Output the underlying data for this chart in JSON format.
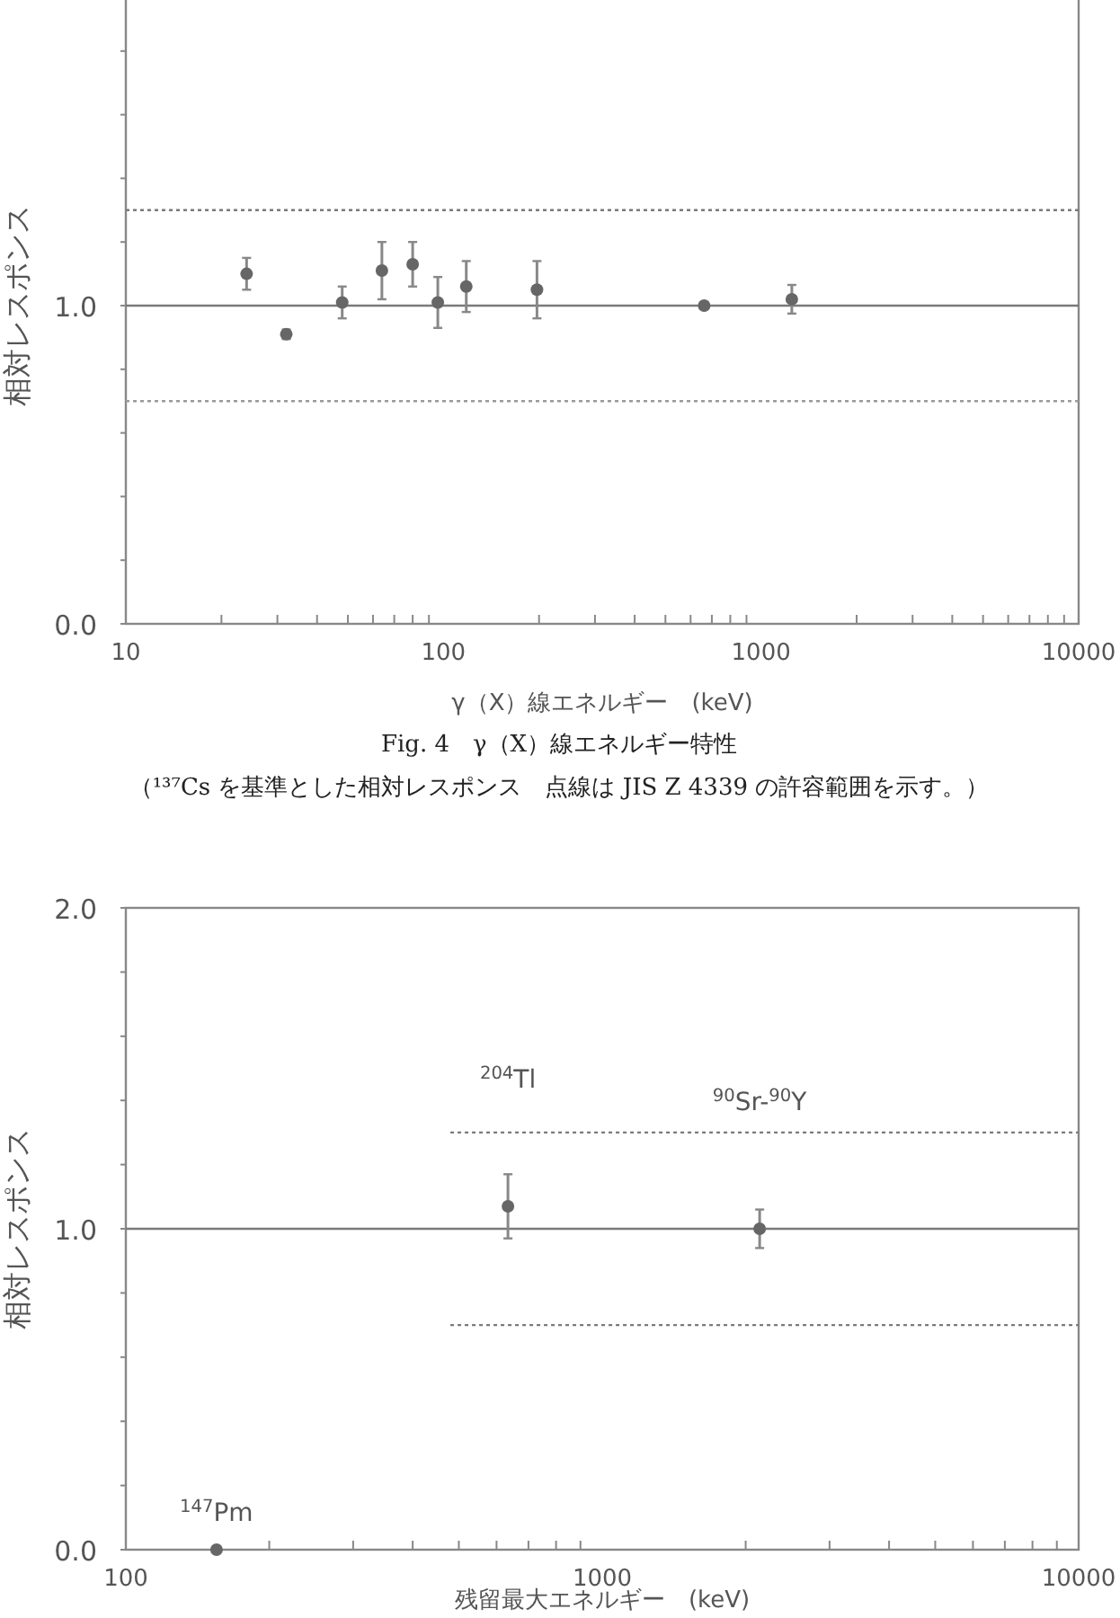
{
  "chart_data": [
    {
      "type": "scatter",
      "xlabel": "γ（X）線エネルギー　(keV)",
      "ylabel": "相対レスポンス",
      "log": "x",
      "grid": false,
      "marker": "circle",
      "annotations": [
        "Fig. 4　γ（X）線エネルギー特性",
        "（¹³⁷Cs を基準とした相対レスポンス　点線は JIS Z 4339 の許容範囲を示す。）"
      ],
      "xlim": [
        10,
        10000
      ],
      "ylim": [
        0,
        2
      ],
      "xticks": [
        10,
        {
          "value": 20,
          "label": null
        },
        {
          "value": 30,
          "label": null
        },
        {
          "value": 40,
          "label": null
        },
        {
          "value": 50,
          "label": null
        },
        {
          "value": 60,
          "label": null
        },
        {
          "value": 70,
          "label": null
        },
        {
          "value": 80,
          "label": null
        },
        {
          "value": 90,
          "label": null
        },
        100,
        {
          "value": 200,
          "label": null
        },
        {
          "value": 300,
          "label": null
        },
        {
          "value": 400,
          "label": null
        },
        {
          "value": 500,
          "label": null
        },
        {
          "value": 600,
          "label": null
        },
        {
          "value": 700,
          "label": null
        },
        {
          "value": 800,
          "label": null
        },
        {
          "value": 900,
          "label": null
        },
        1000,
        {
          "value": 2000,
          "label": null
        },
        {
          "value": 3000,
          "label": null
        },
        {
          "value": 4000,
          "label": null
        },
        {
          "value": 5000,
          "label": null
        },
        {
          "value": 6000,
          "label": null
        },
        {
          "value": 7000,
          "label": null
        },
        {
          "value": 8000,
          "label": null
        },
        {
          "value": 9000,
          "label": null
        },
        10000
      ],
      "yticks": [
        {
          "value": 0,
          "label": "0.0"
        },
        {
          "value": 0.2,
          "label": null
        },
        {
          "value": 0.4,
          "label": null
        },
        {
          "value": 0.6,
          "label": null
        },
        {
          "value": 0.8,
          "label": null
        },
        {
          "value": 1,
          "label": "1.0"
        },
        {
          "value": 1.2,
          "label": null
        },
        {
          "value": 1.4,
          "label": null
        },
        {
          "value": 1.6,
          "label": null
        },
        {
          "value": 1.8,
          "label": null
        }
      ],
      "ref_lines": [
        {
          "axis": "y",
          "value": 1.0,
          "color": "#7a7a7a",
          "line_style": "solid"
        },
        {
          "axis": "y",
          "value": 1.3,
          "color": "#7a7a7a",
          "line_style": "dotted"
        },
        {
          "axis": "y",
          "value": 0.7,
          "color": "#9a9a9a",
          "line_style": "dotted"
        }
      ],
      "series": [
        {
          "type": "scatter",
          "color": "#666666",
          "x": [
            24,
            32,
            48,
            64,
            80,
            96,
            118,
            197,
            662,
            1250
          ],
          "values": [
            1.1,
            0.91,
            1.01,
            1.11,
            1.13,
            1.01,
            1.06,
            1.05,
            1.0,
            1.02
          ],
          "errors": [
            0.05,
            0.015,
            0.05,
            0.09,
            0.07,
            0.08,
            0.08,
            0.09,
            0.01,
            0.045
          ]
        }
      ]
    },
    {
      "type": "scatter",
      "xlabel": "残留最大エネルギー　(keV)",
      "ylabel": "相対レスポンス",
      "log": "x",
      "grid": false,
      "annotations": [
        "$^{147}$Pm",
        "$^{204}$Tl",
        "$^{90}$Sr-$^{90}$Y"
      ],
      "xlim": [
        100,
        10000
      ],
      "ylim": [
        0,
        2
      ],
      "xticks": [
        100,
        {
          "value": 200,
          "label": null
        },
        {
          "value": 300,
          "label": null
        },
        {
          "value": 400,
          "label": null
        },
        {
          "value": 500,
          "label": null
        },
        {
          "value": 600,
          "label": null
        },
        {
          "value": 700,
          "label": null
        },
        {
          "value": 800,
          "label": null
        },
        {
          "value": 900,
          "label": null
        },
        1000,
        {
          "value": 2000,
          "label": null
        },
        {
          "value": 3000,
          "label": null
        },
        {
          "value": 4000,
          "label": null
        },
        {
          "value": 5000,
          "label": null
        },
        {
          "value": 6000,
          "label": null
        },
        {
          "value": 7000,
          "label": null
        },
        {
          "value": 8000,
          "label": null
        },
        {
          "value": 9000,
          "label": null
        },
        10000
      ],
      "yticks": [
        {
          "value": 0,
          "label": "0.0"
        },
        {
          "value": 0.2,
          "label": null
        },
        {
          "value": 0.4,
          "label": null
        },
        {
          "value": 0.6,
          "label": null
        },
        {
          "value": 0.8,
          "label": null
        },
        {
          "value": 1,
          "label": "1.0"
        },
        {
          "value": 1.2,
          "label": null
        },
        {
          "value": 1.4,
          "label": null
        },
        {
          "value": 1.6,
          "label": null
        },
        {
          "value": 1.8,
          "label": null
        },
        {
          "value": 2,
          "label": "2.0"
        }
      ],
      "ref_lines": [
        {
          "axis": "y",
          "value": 1.0,
          "color": "#7a7a7a",
          "line_style": "solid"
        }
      ],
      "series": [
        {
          "type": "scatter",
          "marker": "circle",
          "color": "#666666",
          "x": [
            155,
            634,
            2140
          ],
          "values": [
            0,
            1.07,
            1.0
          ],
          "errors": [
            null,
            0.1,
            0.06
          ]
        },
        {
          "type": "line",
          "color": "#7a7a7a",
          "line_style": "dotted",
          "x": [
            480,
            10000
          ],
          "values": [
            1.3,
            1.3
          ]
        },
        {
          "type": "line",
          "color": "#7a7a7a",
          "line_style": "dotted",
          "x": [
            480,
            10000
          ],
          "values": [
            0.7,
            0.7
          ]
        }
      ]
    }
  ]
}
